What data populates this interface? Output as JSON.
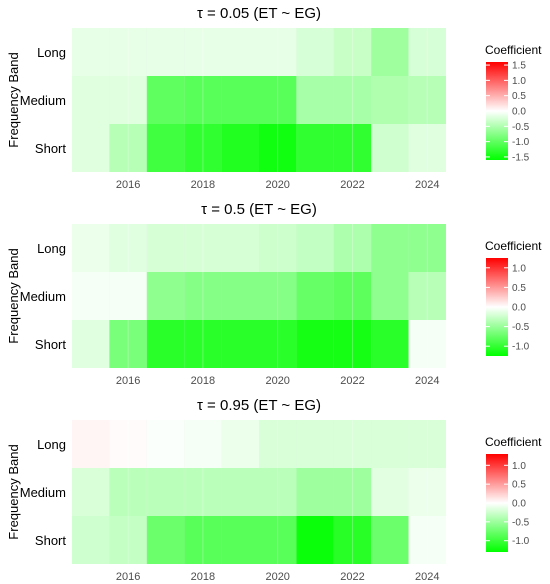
{
  "chart_data": [
    {
      "type": "heatmap",
      "title": "τ = 0.05  (ET ~ EG)",
      "ylabel": "Frequency Band",
      "xlabel": "",
      "x": [
        2015,
        2016,
        2017,
        2018,
        2019,
        2020,
        2021,
        2022,
        2023,
        2024
      ],
      "x_ticks": [
        2016,
        2018,
        2020,
        2022,
        2024
      ],
      "y_categories": [
        "Long",
        "Medium",
        "Short"
      ],
      "values": {
        "Long": [
          -0.15,
          -0.15,
          -0.15,
          -0.15,
          -0.15,
          -0.15,
          -0.25,
          -0.35,
          -0.6,
          -0.25
        ],
        "Medium": [
          -0.2,
          -0.2,
          -1.0,
          -1.05,
          -1.05,
          -1.05,
          -0.55,
          -0.55,
          -0.5,
          -0.45
        ],
        "Short": [
          -0.2,
          -0.45,
          -1.2,
          -1.3,
          -1.4,
          -1.5,
          -1.3,
          -1.3,
          -0.3,
          -0.2
        ]
      },
      "legend": {
        "title": "Coefficient",
        "position": "right",
        "limits": [
          -1.6,
          1.6
        ],
        "ticks": [
          1.5,
          1.0,
          0.5,
          0.0,
          -0.5,
          -1.0,
          -1.5
        ]
      }
    },
    {
      "type": "heatmap",
      "title": "τ = 0.5  (ET ~ EG)",
      "ylabel": "Frequency Band",
      "xlabel": "",
      "x": [
        2015,
        2016,
        2017,
        2018,
        2019,
        2020,
        2021,
        2022,
        2023,
        2024
      ],
      "x_ticks": [
        2016,
        2018,
        2020,
        2022,
        2024
      ],
      "y_categories": [
        "Long",
        "Medium",
        "Short"
      ],
      "values": {
        "Long": [
          -0.1,
          -0.15,
          -0.2,
          -0.2,
          -0.2,
          -0.25,
          -0.3,
          -0.4,
          -0.55,
          -0.55
        ],
        "Medium": [
          -0.05,
          -0.05,
          -0.55,
          -0.6,
          -0.6,
          -0.6,
          -0.75,
          -0.8,
          -0.55,
          -0.35
        ],
        "Short": [
          -0.15,
          -0.65,
          -1.05,
          -1.05,
          -1.05,
          -1.05,
          -1.15,
          -1.15,
          -1.05,
          -0.05
        ]
      },
      "legend": {
        "title": "Coefficient",
        "position": "right",
        "limits": [
          -1.25,
          1.25
        ],
        "ticks": [
          1.0,
          0.5,
          0.0,
          -0.5,
          -1.0
        ]
      }
    },
    {
      "type": "heatmap",
      "title": "τ = 0.95  (ET ~ EG)",
      "ylabel": "Frequency Band",
      "xlabel": "",
      "x": [
        2015,
        2016,
        2017,
        2018,
        2019,
        2020,
        2021,
        2022,
        2023,
        2024
      ],
      "x_ticks": [
        2016,
        2018,
        2020,
        2022,
        2024
      ],
      "y_categories": [
        "Long",
        "Medium",
        "Short"
      ],
      "values": {
        "Long": [
          0.05,
          0.02,
          -0.02,
          -0.05,
          -0.1,
          -0.2,
          -0.2,
          -0.2,
          -0.2,
          -0.2
        ],
        "Medium": [
          -0.2,
          -0.35,
          -0.35,
          -0.35,
          -0.35,
          -0.35,
          -0.5,
          -0.5,
          -0.15,
          -0.1
        ],
        "Short": [
          -0.25,
          -0.3,
          -0.75,
          -0.85,
          -0.85,
          -0.85,
          -1.25,
          -1.1,
          -0.75,
          -0.05
        ]
      },
      "legend": {
        "title": "Coefficient",
        "position": "right",
        "limits": [
          -1.3,
          1.3
        ],
        "ticks": [
          1.0,
          0.5,
          0.0,
          -0.5,
          -1.0
        ]
      }
    }
  ]
}
